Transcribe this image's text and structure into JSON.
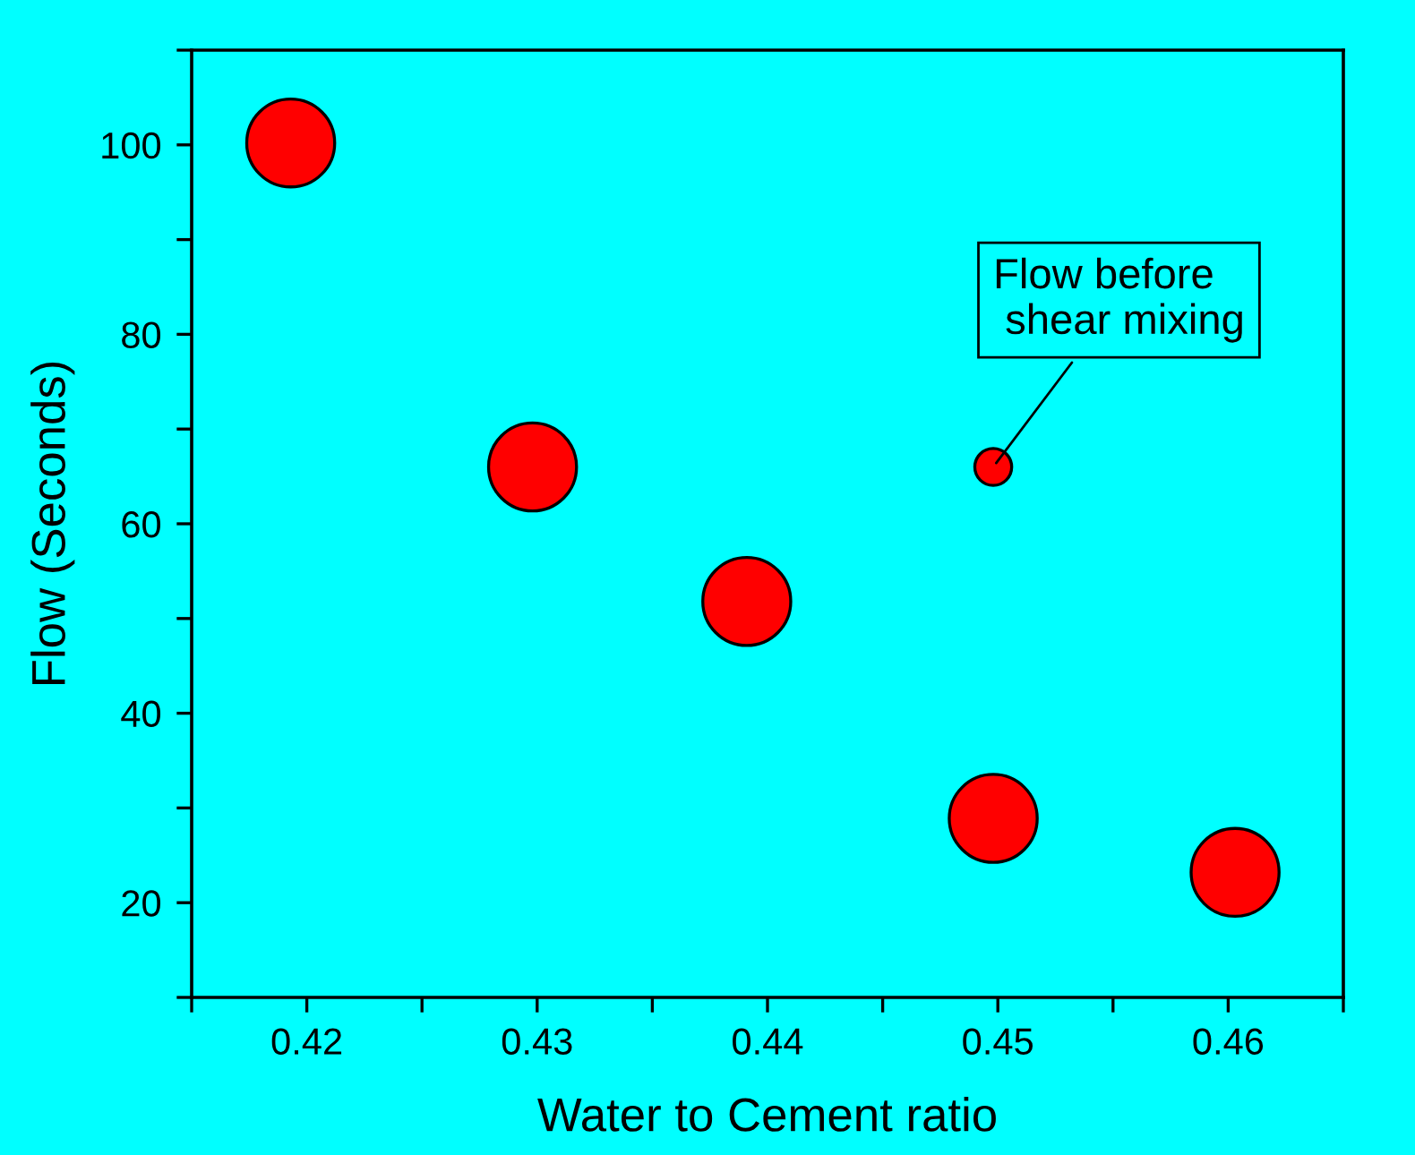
{
  "chart_data": {
    "type": "scatter",
    "xlabel": "Water to Cement ratio",
    "ylabel": "Flow (Seconds)",
    "xlim": [
      0.415,
      0.465
    ],
    "ylim": [
      10,
      110
    ],
    "xticks": [
      {
        "value": 0.415,
        "label": null
      },
      0.42,
      {
        "value": 0.425,
        "label": null
      },
      0.43,
      {
        "value": 0.435,
        "label": null
      },
      0.44,
      {
        "value": 0.445,
        "label": null
      },
      0.45,
      {
        "value": 0.455,
        "label": null
      },
      0.46,
      {
        "value": 0.465,
        "label": null
      }
    ],
    "yticks": [
      {
        "value": 10,
        "label": null
      },
      20,
      {
        "value": 30,
        "label": null
      },
      40,
      {
        "value": 50,
        "label": null
      },
      60,
      {
        "value": 70,
        "label": null
      },
      80,
      {
        "value": 90,
        "label": null
      },
      100,
      {
        "value": 110,
        "label": null
      }
    ],
    "grid": false,
    "legend": false,
    "series": [
      {
        "color": "#ff0000",
        "x": [
          0.4193,
          0.4298,
          0.4391,
          0.4498,
          0.4603
        ],
        "values": [
          100.2,
          66,
          51.8,
          28.9,
          23.2
        ]
      },
      {
        "color": "#ff0000",
        "x": [
          0.4498
        ],
        "values": [
          66
        ]
      }
    ],
    "annotations": [
      {
        "text": "Flow before\n shear mixing",
        "x": 0.4498,
        "y": 66
      }
    ]
  }
}
